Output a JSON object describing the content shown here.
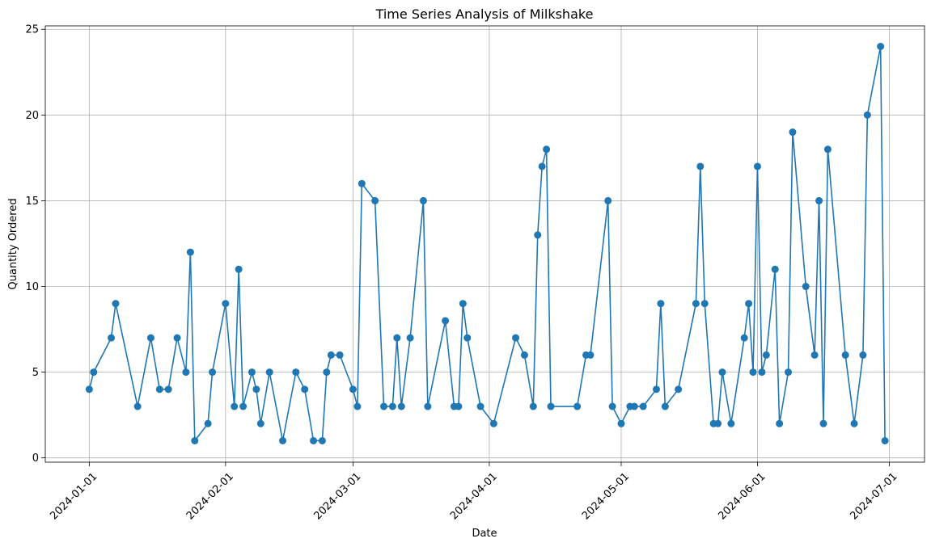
{
  "chart_data": {
    "type": "line",
    "title": "Time Series Analysis of Milkshake",
    "xlabel": "Date",
    "ylabel": "Quantity Ordered",
    "xlim": [
      "2023-12-22",
      "2024-07-09"
    ],
    "ylim": [
      -0.25,
      25.2
    ],
    "grid": true,
    "marker": "circle",
    "color": "#1f77b4",
    "x_ticks": [
      "2024-01-01",
      "2024-02-01",
      "2024-03-01",
      "2024-04-01",
      "2024-05-01",
      "2024-06-01",
      "2024-07-01"
    ],
    "y_ticks": [
      0,
      5,
      10,
      15,
      20,
      25
    ],
    "series": [
      {
        "x": [
          "2024-01-01",
          "2024-01-02",
          "2024-01-06",
          "2024-01-07",
          "2024-01-12",
          "2024-01-15",
          "2024-01-17",
          "2024-01-19",
          "2024-01-21",
          "2024-01-23",
          "2024-01-24",
          "2024-01-25",
          "2024-01-28",
          "2024-01-29",
          "2024-02-01",
          "2024-02-03",
          "2024-02-04",
          "2024-02-05",
          "2024-02-07",
          "2024-02-08",
          "2024-02-09",
          "2024-02-11",
          "2024-02-14",
          "2024-02-17",
          "2024-02-19",
          "2024-02-21",
          "2024-02-23",
          "2024-02-24",
          "2024-02-25",
          "2024-02-27",
          "2024-03-01",
          "2024-03-02",
          "2024-03-03",
          "2024-03-06",
          "2024-03-08",
          "2024-03-10",
          "2024-03-11",
          "2024-03-12",
          "2024-03-14",
          "2024-03-17",
          "2024-03-18",
          "2024-03-22",
          "2024-03-24",
          "2024-03-25",
          "2024-03-26",
          "2024-03-27",
          "2024-03-30",
          "2024-04-02",
          "2024-04-07",
          "2024-04-09",
          "2024-04-11",
          "2024-04-12",
          "2024-04-13",
          "2024-04-14",
          "2024-04-15",
          "2024-04-21",
          "2024-04-23",
          "2024-04-24",
          "2024-04-28",
          "2024-04-29",
          "2024-05-01",
          "2024-05-03",
          "2024-05-04",
          "2024-05-06",
          "2024-05-09",
          "2024-05-10",
          "2024-05-11",
          "2024-05-14",
          "2024-05-18",
          "2024-05-19",
          "2024-05-20",
          "2024-05-22",
          "2024-05-23",
          "2024-05-24",
          "2024-05-26",
          "2024-05-29",
          "2024-05-30",
          "2024-05-31",
          "2024-06-01",
          "2024-06-02",
          "2024-06-03",
          "2024-06-05",
          "2024-06-06",
          "2024-06-08",
          "2024-06-09",
          "2024-06-12",
          "2024-06-14",
          "2024-06-15",
          "2024-06-16",
          "2024-06-17",
          "2024-06-21",
          "2024-06-23",
          "2024-06-25",
          "2024-06-26",
          "2024-06-29",
          "2024-06-30"
        ],
        "values": [
          4,
          5,
          7,
          9,
          3,
          7,
          4,
          4,
          7,
          5,
          12,
          1,
          2,
          5,
          9,
          3,
          11,
          3,
          5,
          4,
          2,
          5,
          1,
          5,
          4,
          1,
          1,
          5,
          6,
          6,
          4,
          3,
          16,
          15,
          3,
          3,
          7,
          3,
          7,
          15,
          3,
          8,
          3,
          3,
          9,
          7,
          3,
          2,
          7,
          6,
          3,
          13,
          17,
          18,
          3,
          3,
          6,
          6,
          15,
          3,
          2,
          3,
          3,
          3,
          4,
          9,
          3,
          4,
          9,
          17,
          9,
          2,
          2,
          5,
          2,
          7,
          9,
          5,
          17,
          5,
          6,
          11,
          2,
          5,
          19,
          10,
          6,
          15,
          2,
          18,
          6,
          2,
          6,
          20,
          24,
          1
        ]
      }
    ]
  }
}
